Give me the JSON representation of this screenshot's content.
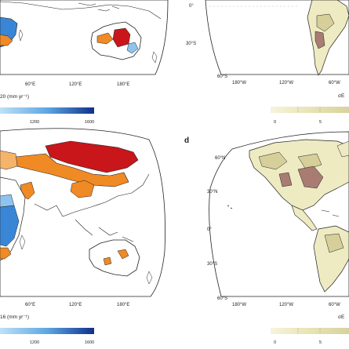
{
  "panels": {
    "left_top": {
      "lon_ticks": [
        "60°E",
        "120°E",
        "180°E"
      ],
      "colorbar_title": "20 (mm yr⁻¹)",
      "colorbar_ticks": [
        "1200",
        "1600"
      ]
    },
    "right_top": {
      "lat_ticks": [
        "0°",
        "30°S",
        "60°S"
      ],
      "lon_ticks": [
        "180°W",
        "120°W",
        "60°W"
      ],
      "colorbar_title": "σE",
      "colorbar_ticks": [
        "0",
        "5"
      ]
    },
    "left_bottom": {
      "lon_ticks": [
        "60°E",
        "120°E",
        "180°E"
      ],
      "colorbar_title": "16 (mm yr⁻¹)",
      "colorbar_ticks": [
        "1200",
        "1600"
      ]
    },
    "right_bottom": {
      "label": "d",
      "lat_ticks": [
        "60°N",
        "30°N",
        "0°",
        "30°S",
        "60°S"
      ],
      "lon_ticks": [
        "180°W",
        "120°W",
        "60°W"
      ],
      "colorbar_title": "σE",
      "colorbar_ticks": [
        "0",
        "5"
      ]
    }
  },
  "colors": {
    "ocean": "#ffffff",
    "coast": "#1a1a1a",
    "precip_blue_dark": "#1f5fb4",
    "precip_blue_light": "#8ec3ee",
    "precip_orange": "#f08a24",
    "precip_red": "#c8161b",
    "sigma_light": "#eeebc3",
    "sigma_mid": "#d6cf9a",
    "sigma_brown": "#a87c73"
  }
}
